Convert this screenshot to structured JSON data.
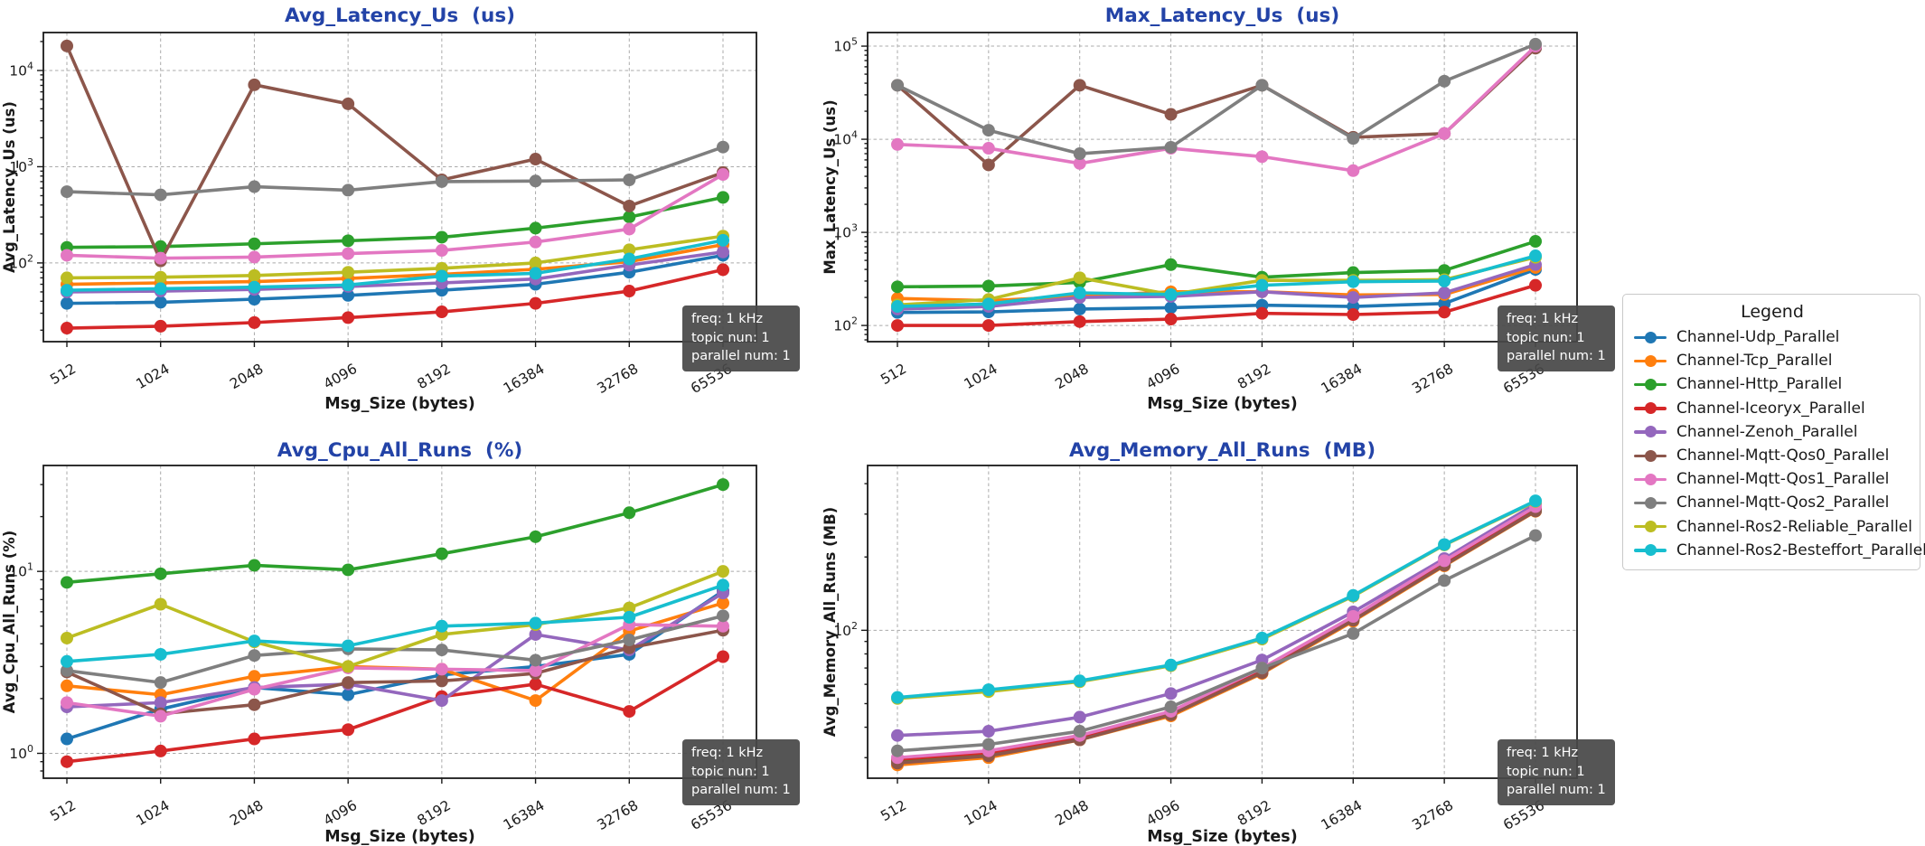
{
  "page": {
    "background": "#ffffff",
    "title_color": "#2343a7"
  },
  "badge": {
    "lines": [
      "freq: 1 kHz",
      "topic nun: 1",
      "parallel num: 1"
    ]
  },
  "legend": {
    "title": "Legend",
    "entries": [
      {
        "label": "Channel-Udp_Parallel",
        "color": "#1f77b4"
      },
      {
        "label": "Channel-Tcp_Parallel",
        "color": "#ff7f0e"
      },
      {
        "label": "Channel-Http_Parallel",
        "color": "#2ca02c"
      },
      {
        "label": "Channel-Iceoryx_Parallel",
        "color": "#d62728"
      },
      {
        "label": "Channel-Zenoh_Parallel",
        "color": "#9467bd"
      },
      {
        "label": "Channel-Mqtt-Qos0_Parallel",
        "color": "#8c564b"
      },
      {
        "label": "Channel-Mqtt-Qos1_Parallel",
        "color": "#e377c2"
      },
      {
        "label": "Channel-Mqtt-Qos2_Parallel",
        "color": "#7f7f7f"
      },
      {
        "label": "Channel-Ros2-Reliable_Parallel",
        "color": "#bcbd22"
      },
      {
        "label": "Channel-Ros2-Besteffort_Parallel",
        "color": "#17becf"
      }
    ]
  },
  "chart_data": [
    {
      "type": "line",
      "id": "avg-latency",
      "title": "Avg_Latency_Us  (us)",
      "xlabel": "Msg_Size (bytes)",
      "ylabel": "Avg_Latency_Us (us)",
      "yscale": "log",
      "ylim": [
        15.2,
        24800
      ],
      "yticks": [
        100,
        1000,
        10000
      ],
      "grid": true,
      "legend_position": "outside-right",
      "categories": [
        "512",
        "1024",
        "2048",
        "4096",
        "8192",
        "16384",
        "32768",
        "65536"
      ],
      "series": [
        {
          "name": "Channel-Udp_Parallel",
          "values": [
            38,
            39,
            42,
            46,
            52,
            60,
            80,
            120
          ]
        },
        {
          "name": "Channel-Tcp_Parallel",
          "values": [
            60,
            62,
            64,
            69,
            76,
            86,
            103,
            155
          ]
        },
        {
          "name": "Channel-Http_Parallel",
          "values": [
            145,
            148,
            158,
            170,
            185,
            230,
            300,
            480
          ]
        },
        {
          "name": "Channel-Iceoryx_Parallel",
          "values": [
            21,
            22,
            24,
            27,
            31,
            38,
            51,
            85
          ]
        },
        {
          "name": "Channel-Zenoh_Parallel",
          "values": [
            50,
            51,
            53,
            57,
            62,
            68,
            95,
            130
          ]
        },
        {
          "name": "Channel-Mqtt-Qos0_Parallel",
          "values": [
            18000,
            105,
            7100,
            4500,
            730,
            1200,
            390,
            870
          ]
        },
        {
          "name": "Channel-Mqtt-Qos1_Parallel",
          "values": [
            120,
            112,
            115,
            125,
            135,
            165,
            225,
            830
          ]
        },
        {
          "name": "Channel-Mqtt-Qos2_Parallel",
          "values": [
            550,
            510,
            620,
            570,
            700,
            710,
            730,
            1600
          ]
        },
        {
          "name": "Channel-Ros2-Reliable_Parallel",
          "values": [
            70,
            71,
            74,
            80,
            88,
            100,
            137,
            190
          ]
        },
        {
          "name": "Channel-Ros2-Besteffort_Parallel",
          "values": [
            52,
            54,
            56,
            59,
            73,
            78,
            110,
            172
          ]
        }
      ]
    },
    {
      "type": "line",
      "id": "max-latency",
      "title": "Max_Latency_Us  (us)",
      "xlabel": "Msg_Size (bytes)",
      "ylabel": "Max_Latency_Us (us)",
      "yscale": "log",
      "ylim": [
        67,
        140000
      ],
      "yticks": [
        100,
        1000,
        10000,
        100000
      ],
      "grid": true,
      "categories": [
        "512",
        "1024",
        "2048",
        "4096",
        "8192",
        "16384",
        "32768",
        "65536"
      ],
      "series": [
        {
          "name": "Channel-Udp_Parallel",
          "values": [
            138,
            140,
            150,
            155,
            165,
            160,
            172,
            400
          ]
        },
        {
          "name": "Channel-Tcp_Parallel",
          "values": [
            195,
            185,
            205,
            230,
            230,
            213,
            215,
            420
          ]
        },
        {
          "name": "Channel-Http_Parallel",
          "values": [
            260,
            265,
            290,
            450,
            330,
            370,
            390,
            800
          ]
        },
        {
          "name": "Channel-Iceoryx_Parallel",
          "values": [
            100,
            100,
            110,
            117,
            135,
            131,
            139,
            270
          ]
        },
        {
          "name": "Channel-Zenoh_Parallel",
          "values": [
            150,
            160,
            200,
            205,
            230,
            200,
            224,
            450
          ]
        },
        {
          "name": "Channel-Mqtt-Qos0_Parallel",
          "values": [
            38000,
            5300,
            38000,
            18500,
            38000,
            10500,
            11500,
            95000
          ]
        },
        {
          "name": "Channel-Mqtt-Qos1_Parallel",
          "values": [
            8800,
            8000,
            5500,
            8000,
            6500,
            4600,
            11500,
            100000
          ]
        },
        {
          "name": "Channel-Mqtt-Qos2_Parallel",
          "values": [
            38000,
            12500,
            7000,
            8200,
            38000,
            10200,
            42000,
            105000
          ]
        },
        {
          "name": "Channel-Ros2-Reliable_Parallel",
          "values": [
            166,
            190,
            325,
            215,
            305,
            305,
            310,
            540
          ]
        },
        {
          "name": "Channel-Ros2-Besteffort_Parallel",
          "values": [
            160,
            170,
            224,
            215,
            270,
            295,
            300,
            560
          ]
        }
      ]
    },
    {
      "type": "line",
      "id": "avg-cpu",
      "title": "Avg_Cpu_All_Runs  (%)",
      "xlabel": "Msg_Size (bytes)",
      "ylabel": "Avg_Cpu_All_Runs (%)",
      "yscale": "log",
      "ylim": [
        0.73,
        38.2
      ],
      "yticks": [
        1,
        10
      ],
      "grid": true,
      "categories": [
        "512",
        "1024",
        "2048",
        "4096",
        "8192",
        "16384",
        "32768",
        "65536"
      ],
      "series": [
        {
          "name": "Channel-Udp_Parallel",
          "values": [
            1.2,
            1.75,
            2.3,
            2.1,
            2.7,
            3.0,
            3.5,
            7.8
          ]
        },
        {
          "name": "Channel-Tcp_Parallel",
          "values": [
            2.35,
            2.1,
            2.65,
            3.0,
            2.9,
            1.95,
            4.7,
            6.7
          ]
        },
        {
          "name": "Channel-Http_Parallel",
          "values": [
            8.7,
            9.7,
            10.8,
            10.2,
            12.5,
            15.5,
            21,
            30
          ]
        },
        {
          "name": "Channel-Iceoryx_Parallel",
          "values": [
            0.9,
            1.03,
            1.2,
            1.35,
            2.05,
            2.4,
            1.7,
            3.4
          ]
        },
        {
          "name": "Channel-Zenoh_Parallel",
          "values": [
            1.8,
            1.9,
            2.3,
            2.4,
            1.95,
            4.5,
            3.7,
            7.6
          ]
        },
        {
          "name": "Channel-Mqtt-Qos0_Parallel",
          "values": [
            2.8,
            1.65,
            1.85,
            2.45,
            2.5,
            2.75,
            3.8,
            4.75
          ]
        },
        {
          "name": "Channel-Mqtt-Qos1_Parallel",
          "values": [
            1.9,
            1.6,
            2.25,
            2.95,
            2.9,
            2.85,
            5.1,
            5.0
          ]
        },
        {
          "name": "Channel-Mqtt-Qos2_Parallel",
          "values": [
            2.85,
            2.45,
            3.45,
            3.75,
            3.7,
            3.25,
            4.2,
            5.7
          ]
        },
        {
          "name": "Channel-Ros2-Reliable_Parallel",
          "values": [
            4.3,
            6.6,
            4.1,
            3.0,
            4.5,
            5.1,
            6.3,
            10.0
          ]
        },
        {
          "name": "Channel-Ros2-Besteffort_Parallel",
          "values": [
            3.2,
            3.5,
            4.15,
            3.9,
            5.0,
            5.2,
            5.6,
            8.4
          ]
        }
      ]
    },
    {
      "type": "line",
      "id": "avg-memory",
      "title": "Avg_Memory_All_Runs  (MB)",
      "xlabel": "Msg_Size (bytes)",
      "ylabel": "Avg_Memory_All_Runs (MB)",
      "yscale": "log",
      "ylim": [
        24.7,
        475
      ],
      "yticks": [
        100
      ],
      "grid": true,
      "categories": [
        "512",
        "1024",
        "2048",
        "4096",
        "8192",
        "16384",
        "32768",
        "65536"
      ],
      "series": [
        {
          "name": "Channel-Udp_Parallel",
          "values": [
            29,
            31,
            36,
            45,
            67,
            110,
            185,
            310
          ]
        },
        {
          "name": "Channel-Tcp_Parallel",
          "values": [
            28,
            30,
            35.5,
            44.5,
            66.5,
            109,
            184,
            308
          ]
        },
        {
          "name": "Channel-Http_Parallel",
          "values": [
            29,
            31,
            36,
            45.5,
            68,
            111,
            186,
            312
          ]
        },
        {
          "name": "Channel-Iceoryx_Parallel",
          "values": [
            29.5,
            31.5,
            36.5,
            46,
            68,
            111,
            190,
            315
          ]
        },
        {
          "name": "Channel-Zenoh_Parallel",
          "values": [
            37,
            38.5,
            44,
            55,
            75.5,
            119,
            197,
            330
          ]
        },
        {
          "name": "Channel-Mqtt-Qos0_Parallel",
          "values": [
            28.5,
            30.5,
            35.5,
            45,
            67,
            110,
            185,
            309
          ]
        },
        {
          "name": "Channel-Mqtt-Qos1_Parallel",
          "values": [
            30,
            32,
            37,
            46.5,
            70,
            114,
            193,
            322
          ]
        },
        {
          "name": "Channel-Mqtt-Qos2_Parallel",
          "values": [
            32,
            34,
            38.5,
            48.5,
            70,
            97,
            160,
            245
          ]
        },
        {
          "name": "Channel-Ros2-Reliable_Parallel",
          "values": [
            52.5,
            56,
            61.5,
            71.5,
            92,
            138,
            224,
            338
          ]
        },
        {
          "name": "Channel-Ros2-Besteffort_Parallel",
          "values": [
            53,
            57,
            62,
            72,
            93,
            139,
            225,
            340
          ]
        }
      ]
    }
  ]
}
